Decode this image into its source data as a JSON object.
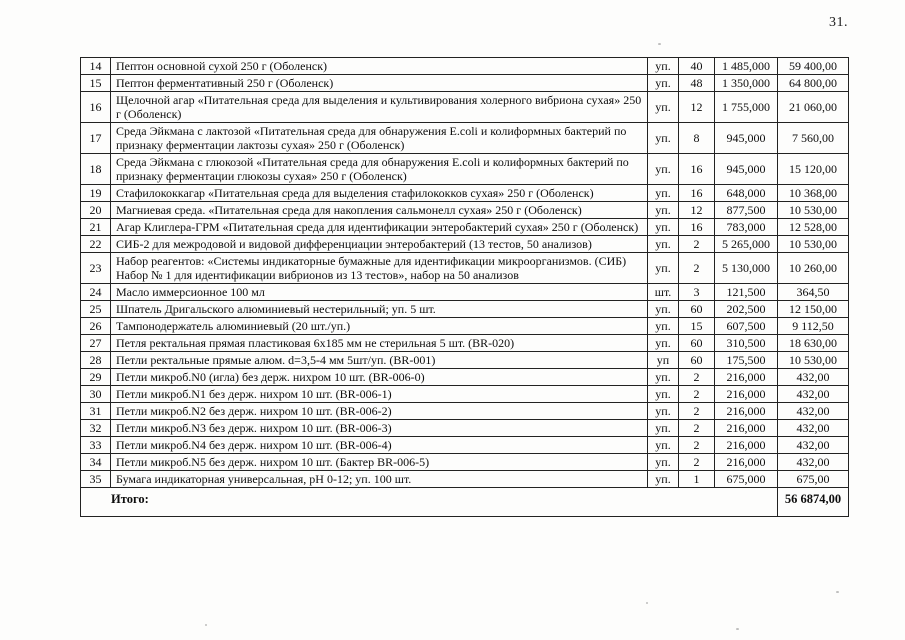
{
  "page": {
    "number_label": "31."
  },
  "table": {
    "rows": [
      {
        "num": "14",
        "desc": "Пептон основной сухой 250 г (Оболенск)",
        "unit": "уп.",
        "qty": "40",
        "price": "1 485,000",
        "total": "59 400,00"
      },
      {
        "num": "15",
        "desc": "Пептон ферментативный 250 г (Оболенск)",
        "unit": "уп.",
        "qty": "48",
        "price": "1 350,000",
        "total": "64 800,00"
      },
      {
        "num": "16",
        "desc": "Щелочной агар «Питательная среда для выделения и культивирования холерного вибриона сухая» 250 г (Оболенск)",
        "unit": "уп.",
        "qty": "12",
        "price": "1 755,000",
        "total": "21 060,00"
      },
      {
        "num": "17",
        "desc": "Среда Эйкмана с лактозой «Питательная среда для обнаружения E.coli и колиформных бактерий по признаку ферментации лактозы сухая» 250 г (Оболенск)",
        "unit": "уп.",
        "qty": "8",
        "price": "945,000",
        "total": "7 560,00"
      },
      {
        "num": "18",
        "desc": "Среда Эйкмана с глюкозой «Питательная среда для обнаружения E.coli и колиформных бактерий по признаку ферментации глюкозы сухая» 250 г (Оболенск)",
        "unit": "уп.",
        "qty": "16",
        "price": "945,000",
        "total": "15 120,00"
      },
      {
        "num": "19",
        "desc": "Стафилококкагар «Питательная среда для выделения стафилококков сухая» 250 г (Оболенск)",
        "unit": "уп.",
        "qty": "16",
        "price": "648,000",
        "total": "10 368,00"
      },
      {
        "num": "20",
        "desc": "Магниевая среда. «Питательная среда для накопления сальмонелл сухая» 250 г (Оболенск)",
        "unit": "уп.",
        "qty": "12",
        "price": "877,500",
        "total": "10 530,00"
      },
      {
        "num": "21",
        "desc": "Агар Клиглера-ГРМ «Питательная среда для идентификации энтеробактерий сухая» 250 г (Оболенск)",
        "unit": "уп.",
        "qty": "16",
        "price": "783,000",
        "total": "12 528,00"
      },
      {
        "num": "22",
        "desc": "СИБ-2 для межродовой и видовой дифференциации энтеробактерий (13 тестов, 50 анализов)",
        "unit": "уп.",
        "qty": "2",
        "price": "5 265,000",
        "total": "10 530,00"
      },
      {
        "num": "23",
        "desc": "Набор реагентов: «Системы индикаторные бумажные для идентификации микроорганизмов. (СИБ) Набор № 1 для идентификации вибрионов из 13 тестов», набор на 50 анализов",
        "unit": "уп.",
        "qty": "2",
        "price": "5 130,000",
        "total": "10 260,00"
      },
      {
        "num": "24",
        "desc": "Масло иммерсионное 100 мл",
        "unit": "шт.",
        "qty": "3",
        "price": "121,500",
        "total": "364,50"
      },
      {
        "num": "25",
        "desc": "Шпатель Дригальского алюминиевый нестерильный; уп. 5 шт.",
        "unit": "уп.",
        "qty": "60",
        "price": "202,500",
        "total": "12 150,00"
      },
      {
        "num": "26",
        "desc": "Тампонодержатель алюминиевый (20 шт./уп.)",
        "unit": "уп.",
        "qty": "15",
        "price": "607,500",
        "total": "9 112,50"
      },
      {
        "num": "27",
        "desc": "Петля ректальная прямая пластиковая 6х185 мм не стерильная 5 шт. (BR-020)",
        "unit": "уп.",
        "qty": "60",
        "price": "310,500",
        "total": "18 630,00"
      },
      {
        "num": "28",
        "desc": "Петли ректальные прямые алюм. d=3,5-4 мм 5шт/уп. (BR-001)",
        "unit": "уп",
        "qty": "60",
        "price": "175,500",
        "total": "10 530,00"
      },
      {
        "num": "29",
        "desc": "Петли микроб.N0 (игла) без держ. нихром 10 шт. (BR-006-0)",
        "unit": "уп.",
        "qty": "2",
        "price": "216,000",
        "total": "432,00"
      },
      {
        "num": "30",
        "desc": "Петли микроб.N1 без держ. нихром 10 шт. (BR-006-1)",
        "unit": "уп.",
        "qty": "2",
        "price": "216,000",
        "total": "432,00"
      },
      {
        "num": "31",
        "desc": "Петли микроб.N2 без держ. нихром 10 шт. (BR-006-2)",
        "unit": "уп.",
        "qty": "2",
        "price": "216,000",
        "total": "432,00"
      },
      {
        "num": "32",
        "desc": "Петли микроб.N3 без держ. нихром 10 шт. (BR-006-3)",
        "unit": "уп.",
        "qty": "2",
        "price": "216,000",
        "total": "432,00"
      },
      {
        "num": "33",
        "desc": "Петли микроб.N4 без держ. нихром 10 шт. (BR-006-4)",
        "unit": "уп.",
        "qty": "2",
        "price": "216,000",
        "total": "432,00"
      },
      {
        "num": "34",
        "desc": "Петли микроб.N5 без держ. нихром 10 шт. (Бактер BR-006-5)",
        "unit": "уп.",
        "qty": "2",
        "price": "216,000",
        "total": "432,00"
      },
      {
        "num": "35",
        "desc": "Бумага индикаторная универсальная, pH 0-12; уп. 100 шт.",
        "unit": "уп.",
        "qty": "1",
        "price": "675,000",
        "total": "675,00"
      }
    ],
    "total_label": "Итого:",
    "total_value": "56 6874,00"
  }
}
